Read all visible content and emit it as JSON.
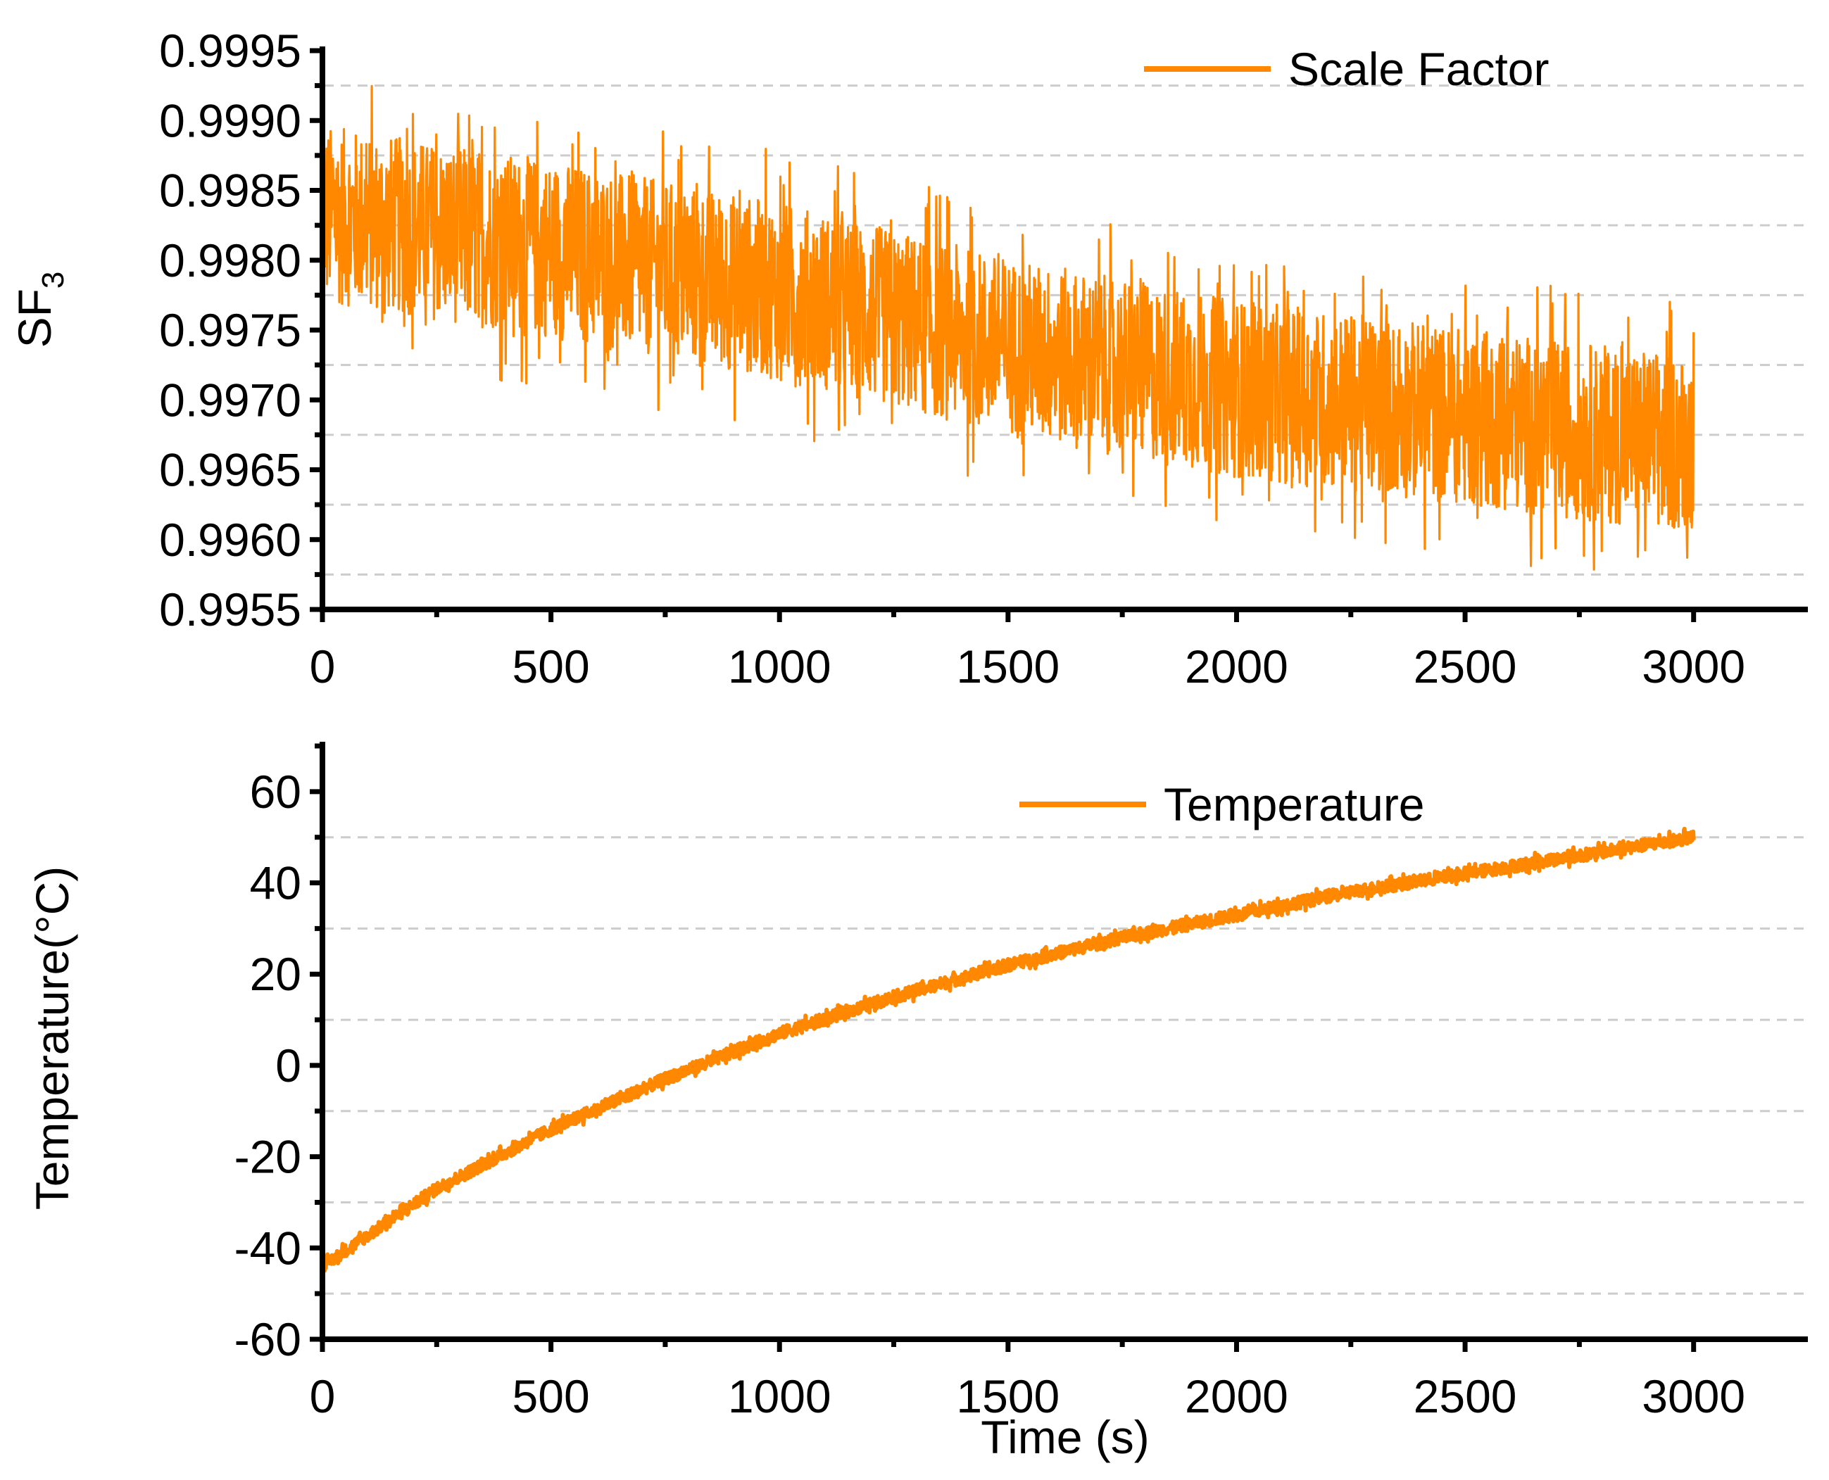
{
  "colors": {
    "series": "#ff8800",
    "grid": "#cccccc",
    "axis": "#000000"
  },
  "chart_data": [
    {
      "id": "top",
      "type": "line",
      "title": "",
      "xlabel": "",
      "ylabel_main": "SF",
      "ylabel_sub": "3",
      "xlim": [
        0,
        3250
      ],
      "ylim": [
        0.9955,
        0.9995
      ],
      "xticks": [
        "0",
        "500",
        "1000",
        "1500",
        "2000",
        "2500",
        "3000"
      ],
      "xtick_values": [
        0,
        500,
        1000,
        1500,
        2000,
        2500,
        3000
      ],
      "yticks": [
        "0.9955",
        "0.9960",
        "0.9965",
        "0.9970",
        "0.9975",
        "0.9980",
        "0.9985",
        "0.9990",
        "0.9995"
      ],
      "ytick_values": [
        0.9955,
        0.996,
        0.9965,
        0.997,
        0.9975,
        0.998,
        0.9985,
        0.999,
        0.9995
      ],
      "grid": "dashed horizontal at minor ticks",
      "legend": "top-right",
      "series": [
        {
          "name": "Scale Factor",
          "x": [
            0,
            500,
            1000,
            1500,
            2000,
            2500,
            3000
          ],
          "y": [
            0.99833,
            0.99808,
            0.99778,
            0.99738,
            0.99708,
            0.99688,
            0.99668
          ],
          "noise_amplitude": 0.00085
        }
      ]
    },
    {
      "id": "bottom",
      "type": "line",
      "title": "",
      "xlabel": "Time (s)",
      "ylabel": "Temperature(°C)",
      "xlim": [
        0,
        3250
      ],
      "ylim": [
        -60,
        70
      ],
      "xticks": [
        "0",
        "500",
        "1000",
        "1500",
        "2000",
        "2500",
        "3000"
      ],
      "xtick_values": [
        0,
        500,
        1000,
        1500,
        2000,
        2500,
        3000
      ],
      "yticks": [
        "-60",
        "-40",
        "-20",
        "0",
        "20",
        "40",
        "60"
      ],
      "ytick_values": [
        -60,
        -40,
        -20,
        0,
        20,
        40,
        60
      ],
      "grid": "dashed horizontal at minor ticks",
      "legend": "top-right",
      "series": [
        {
          "name": "Temperature",
          "x": [
            0,
            250,
            500,
            750,
            1000,
            1250,
            1500,
            1750,
            2000,
            2250,
            2500,
            2750,
            3000
          ],
          "y": [
            -44,
            -27,
            -14,
            -3,
            7,
            15,
            22,
            28,
            33,
            38,
            42,
            46,
            50
          ],
          "noise_amplitude": 1.8
        }
      ]
    }
  ]
}
